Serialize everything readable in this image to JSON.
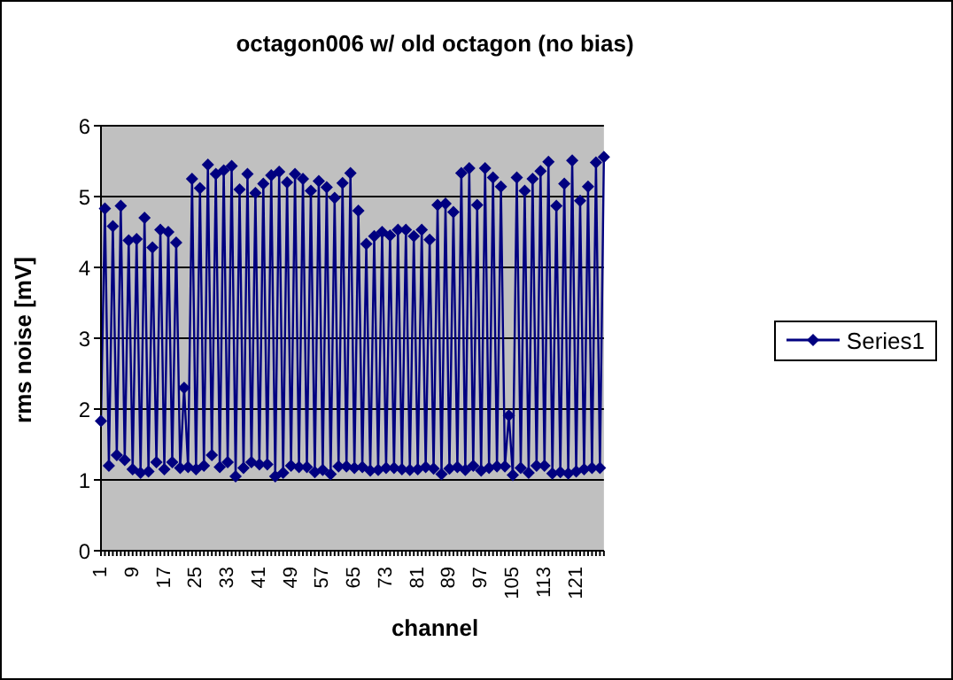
{
  "chart_data": {
    "type": "line",
    "title": "octagon006 w/ old octagon (no bias)",
    "xlabel": "channel",
    "ylabel": "rms noise [mV]",
    "categories": [
      "1",
      null,
      null,
      null,
      null,
      null,
      null,
      null,
      "9",
      null,
      null,
      null,
      null,
      null,
      null,
      null,
      "17",
      null,
      null,
      null,
      null,
      null,
      null,
      null,
      "25",
      null,
      null,
      null,
      null,
      null,
      null,
      null,
      "33",
      null,
      null,
      null,
      null,
      null,
      null,
      null,
      "41",
      null,
      null,
      null,
      null,
      null,
      null,
      null,
      "49",
      null,
      null,
      null,
      null,
      null,
      null,
      null,
      "57",
      null,
      null,
      null,
      null,
      null,
      null,
      null,
      "65",
      null,
      null,
      null,
      null,
      null,
      null,
      null,
      "73",
      null,
      null,
      null,
      null,
      null,
      null,
      null,
      "81",
      null,
      null,
      null,
      null,
      null,
      null,
      null,
      "89",
      null,
      null,
      null,
      null,
      null,
      null,
      null,
      "97",
      null,
      null,
      null,
      null,
      null,
      null,
      null,
      "105",
      null,
      null,
      null,
      null,
      null,
      null,
      null,
      "113",
      null,
      null,
      null,
      null,
      null,
      null,
      null,
      "121",
      null,
      null,
      null,
      null,
      null,
      null,
      null
    ],
    "series": [
      {
        "name": "Series1",
        "color": "#000080",
        "values": [
          1.83,
          4.83,
          1.2,
          4.58,
          1.35,
          4.87,
          1.28,
          4.38,
          1.15,
          4.4,
          1.1,
          4.7,
          1.12,
          4.28,
          1.25,
          4.53,
          1.15,
          4.5,
          1.25,
          4.35,
          1.17,
          2.3,
          1.18,
          5.25,
          1.15,
          5.12,
          1.2,
          5.45,
          1.35,
          5.32,
          1.18,
          5.37,
          1.25,
          5.43,
          1.05,
          5.1,
          1.17,
          5.32,
          1.25,
          5.05,
          1.22,
          5.18,
          1.22,
          5.3,
          1.05,
          5.35,
          1.1,
          5.2,
          1.2,
          5.32,
          1.18,
          5.25,
          1.18,
          5.08,
          1.11,
          5.22,
          1.14,
          5.13,
          1.08,
          4.98,
          1.19,
          5.19,
          1.19,
          5.33,
          1.17,
          4.8,
          1.18,
          4.33,
          1.13,
          4.44,
          1.14,
          4.5,
          1.17,
          4.45,
          1.17,
          4.53,
          1.15,
          4.53,
          1.14,
          4.44,
          1.15,
          4.53,
          1.18,
          4.39,
          1.16,
          4.88,
          1.08,
          4.9,
          1.16,
          4.78,
          1.18,
          5.33,
          1.14,
          5.4,
          1.2,
          4.88,
          1.13,
          5.4,
          1.17,
          5.27,
          1.19,
          5.14,
          1.19,
          1.91,
          1.07,
          5.27,
          1.17,
          5.08,
          1.1,
          5.25,
          1.2,
          5.36,
          1.2,
          5.49,
          1.09,
          4.87,
          1.11,
          5.18,
          1.09,
          5.51,
          1.12,
          4.94,
          1.15,
          5.14,
          1.17,
          5.48,
          1.17,
          5.56
        ]
      }
    ],
    "ylim": [
      0,
      6
    ],
    "yticks": [
      0,
      1,
      2,
      3,
      4,
      5,
      6
    ],
    "grid": "y",
    "legend": "right",
    "marker": "diamond",
    "line_style": "solid"
  }
}
